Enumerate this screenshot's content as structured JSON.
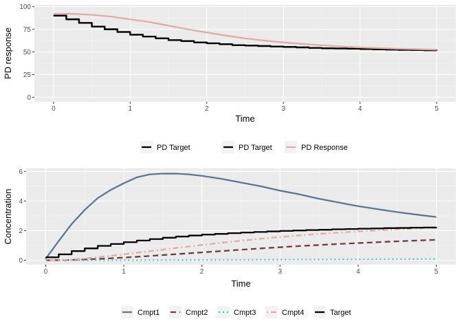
{
  "chart_data": [
    {
      "type": "line",
      "xlabel": "Time",
      "ylabel": "PD response",
      "xlim": [
        -0.25,
        5.25
      ],
      "ylim": [
        -5,
        102
      ],
      "x_ticks": [
        0,
        1,
        2,
        3,
        4,
        5
      ],
      "y_ticks": [
        0,
        25,
        50,
        75,
        100
      ],
      "grid": true,
      "legend_position": "bottom",
      "series": [
        {
          "name": "PD Target",
          "style": "step",
          "color": "#000000",
          "dash": "solid",
          "x": [
            0,
            0.167,
            0.333,
            0.5,
            0.667,
            0.833,
            1.0,
            1.167,
            1.333,
            1.5,
            1.667,
            1.833,
            2.0,
            2.167,
            2.333,
            2.5,
            2.667,
            2.833,
            3.0,
            3.167,
            3.333,
            3.5,
            3.667,
            3.833,
            4.0,
            4.167,
            4.333,
            4.5,
            4.667,
            4.833,
            5.0
          ],
          "y": [
            90,
            86,
            82,
            78,
            75,
            72,
            69,
            67,
            65,
            63,
            62,
            60.5,
            59.5,
            58.5,
            57.5,
            57,
            56.5,
            56,
            55.5,
            55,
            54.5,
            54,
            53.8,
            53.5,
            53.2,
            52.9,
            52.6,
            52.3,
            52,
            51.8,
            51.5
          ]
        },
        {
          "name": "PD Target",
          "style": "step",
          "color": "#000000",
          "dash": "solid",
          "x": [
            0,
            0.167,
            0.333,
            0.5,
            0.667,
            0.833,
            1.0,
            1.167,
            1.333,
            1.5,
            1.667,
            1.833,
            2.0,
            2.167,
            2.333,
            2.5,
            2.667,
            2.833,
            3.0,
            3.167,
            3.333,
            3.5,
            3.667,
            3.833,
            4.0,
            4.167,
            4.333,
            4.5,
            4.667,
            4.833,
            5.0
          ],
          "y": [
            90,
            86,
            82,
            78,
            75,
            72,
            69,
            67,
            65,
            63,
            62,
            60.5,
            59.5,
            58.5,
            57.5,
            57,
            56.5,
            56,
            55.5,
            55,
            54.5,
            54,
            53.8,
            53.5,
            53.2,
            52.9,
            52.6,
            52.3,
            52,
            51.8,
            51.5
          ]
        },
        {
          "name": "PD Response",
          "style": "line",
          "color": "#e0aca3",
          "dash": "solid",
          "x": [
            0,
            0.25,
            0.5,
            0.75,
            1.0,
            1.25,
            1.5,
            1.75,
            2.0,
            2.25,
            2.5,
            2.75,
            3.0,
            3.25,
            3.5,
            3.75,
            4.0,
            4.25,
            4.5,
            4.75,
            5.0
          ],
          "y": [
            92,
            92,
            91,
            89,
            86,
            83,
            79,
            75,
            71.5,
            68,
            65,
            62.5,
            60.5,
            58.8,
            57.3,
            56,
            55,
            54.2,
            53.5,
            53,
            52.5
          ]
        }
      ]
    },
    {
      "type": "line",
      "xlabel": "Time",
      "ylabel": "Concentration",
      "xlim": [
        -0.25,
        5.25
      ],
      "ylim": [
        -0.3,
        6.2
      ],
      "x_ticks": [
        0,
        1,
        2,
        3,
        4,
        5
      ],
      "y_ticks": [
        0,
        2,
        4,
        6
      ],
      "grid": true,
      "legend_position": "bottom",
      "series": [
        {
          "name": "Cmpt1",
          "style": "line",
          "color": "#5f7590",
          "dash": "solid",
          "x": [
            0,
            0.167,
            0.333,
            0.5,
            0.667,
            0.833,
            1.0,
            1.167,
            1.333,
            1.5,
            1.667,
            1.833,
            2.0,
            2.25,
            2.5,
            2.75,
            3.0,
            3.25,
            3.5,
            3.75,
            4.0,
            4.25,
            4.5,
            4.75,
            5.0
          ],
          "y": [
            0.1,
            1.3,
            2.45,
            3.4,
            4.2,
            4.75,
            5.2,
            5.6,
            5.8,
            5.85,
            5.85,
            5.8,
            5.7,
            5.5,
            5.25,
            5.0,
            4.7,
            4.45,
            4.15,
            3.9,
            3.65,
            3.45,
            3.25,
            3.08,
            2.92
          ]
        },
        {
          "name": "Cmpt2",
          "style": "line",
          "color": "#6b3d3d",
          "dash": "dashed",
          "x": [
            0,
            0.25,
            0.5,
            0.75,
            1.0,
            1.25,
            1.5,
            1.75,
            2.0,
            2.25,
            2.5,
            2.75,
            3.0,
            3.25,
            3.5,
            3.75,
            4.0,
            4.25,
            4.5,
            4.75,
            5.0
          ],
          "y": [
            0,
            0.01,
            0.05,
            0.11,
            0.18,
            0.26,
            0.35,
            0.44,
            0.53,
            0.62,
            0.71,
            0.8,
            0.88,
            0.96,
            1.03,
            1.1,
            1.16,
            1.22,
            1.28,
            1.33,
            1.38
          ]
        },
        {
          "name": "Cmpt3",
          "style": "line",
          "color": "#47c3d3",
          "dash": "dotted",
          "x": [
            0,
            0.5,
            1.0,
            1.5,
            2.0,
            2.5,
            3.0,
            3.5,
            4.0,
            4.5,
            5.0
          ],
          "y": [
            0,
            0.001,
            0.005,
            0.012,
            0.02,
            0.03,
            0.04,
            0.05,
            0.06,
            0.07,
            0.08
          ]
        },
        {
          "name": "Cmpt4",
          "style": "line",
          "color": "#e0aca3",
          "dash": "dotdash",
          "x": [
            0,
            0.25,
            0.5,
            0.75,
            1.0,
            1.25,
            1.5,
            1.75,
            2.0,
            2.25,
            2.5,
            2.75,
            3.0,
            3.25,
            3.5,
            3.75,
            4.0,
            4.25,
            4.5,
            4.75,
            5.0
          ],
          "y": [
            0,
            0.03,
            0.12,
            0.25,
            0.4,
            0.56,
            0.72,
            0.88,
            1.03,
            1.18,
            1.32,
            1.45,
            1.57,
            1.68,
            1.78,
            1.87,
            1.95,
            2.02,
            2.08,
            2.14,
            2.2
          ]
        },
        {
          "name": "Target",
          "style": "step",
          "color": "#000000",
          "dash": "solid",
          "x": [
            0,
            0.167,
            0.333,
            0.5,
            0.667,
            0.833,
            1.0,
            1.167,
            1.333,
            1.5,
            1.667,
            1.833,
            2.0,
            2.167,
            2.333,
            2.5,
            2.667,
            2.833,
            3.0,
            3.167,
            3.333,
            3.5,
            3.667,
            3.833,
            4.0,
            4.167,
            4.333,
            4.5,
            4.667,
            4.833,
            5.0
          ],
          "y": [
            0.2,
            0.4,
            0.62,
            0.8,
            0.97,
            1.1,
            1.22,
            1.33,
            1.43,
            1.52,
            1.6,
            1.67,
            1.73,
            1.78,
            1.83,
            1.87,
            1.91,
            1.95,
            1.98,
            2.01,
            2.04,
            2.06,
            2.09,
            2.11,
            2.13,
            2.15,
            2.17,
            2.18,
            2.2,
            2.21,
            2.23
          ]
        }
      ]
    }
  ]
}
